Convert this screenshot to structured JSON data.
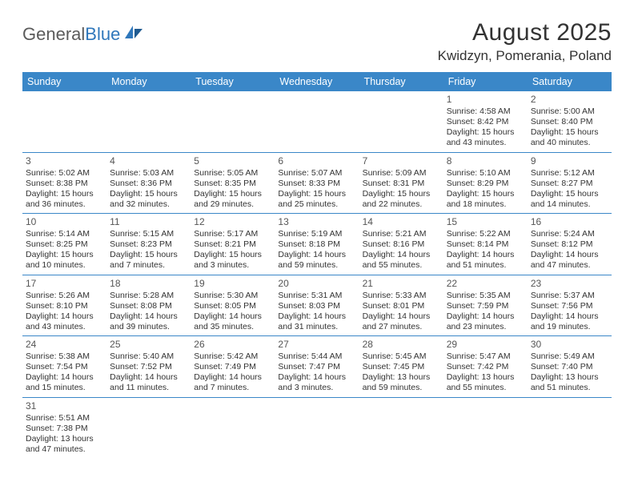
{
  "logo": {
    "text1": "General",
    "text2": "Blue"
  },
  "title": "August 2025",
  "location": "Kwidzyn, Pomerania, Poland",
  "colors": {
    "header_bg": "#3a87c8",
    "header_text": "#ffffff",
    "border": "#3a87c8",
    "text": "#333333",
    "logo_gray": "#5b5b5b",
    "logo_blue": "#2f77bb"
  },
  "days": [
    "Sunday",
    "Monday",
    "Tuesday",
    "Wednesday",
    "Thursday",
    "Friday",
    "Saturday"
  ],
  "weeks": [
    [
      null,
      null,
      null,
      null,
      null,
      {
        "n": "1",
        "sr": "Sunrise: 4:58 AM",
        "ss": "Sunset: 8:42 PM",
        "dl": "Daylight: 15 hours and 43 minutes."
      },
      {
        "n": "2",
        "sr": "Sunrise: 5:00 AM",
        "ss": "Sunset: 8:40 PM",
        "dl": "Daylight: 15 hours and 40 minutes."
      }
    ],
    [
      {
        "n": "3",
        "sr": "Sunrise: 5:02 AM",
        "ss": "Sunset: 8:38 PM",
        "dl": "Daylight: 15 hours and 36 minutes."
      },
      {
        "n": "4",
        "sr": "Sunrise: 5:03 AM",
        "ss": "Sunset: 8:36 PM",
        "dl": "Daylight: 15 hours and 32 minutes."
      },
      {
        "n": "5",
        "sr": "Sunrise: 5:05 AM",
        "ss": "Sunset: 8:35 PM",
        "dl": "Daylight: 15 hours and 29 minutes."
      },
      {
        "n": "6",
        "sr": "Sunrise: 5:07 AM",
        "ss": "Sunset: 8:33 PM",
        "dl": "Daylight: 15 hours and 25 minutes."
      },
      {
        "n": "7",
        "sr": "Sunrise: 5:09 AM",
        "ss": "Sunset: 8:31 PM",
        "dl": "Daylight: 15 hours and 22 minutes."
      },
      {
        "n": "8",
        "sr": "Sunrise: 5:10 AM",
        "ss": "Sunset: 8:29 PM",
        "dl": "Daylight: 15 hours and 18 minutes."
      },
      {
        "n": "9",
        "sr": "Sunrise: 5:12 AM",
        "ss": "Sunset: 8:27 PM",
        "dl": "Daylight: 15 hours and 14 minutes."
      }
    ],
    [
      {
        "n": "10",
        "sr": "Sunrise: 5:14 AM",
        "ss": "Sunset: 8:25 PM",
        "dl": "Daylight: 15 hours and 10 minutes."
      },
      {
        "n": "11",
        "sr": "Sunrise: 5:15 AM",
        "ss": "Sunset: 8:23 PM",
        "dl": "Daylight: 15 hours and 7 minutes."
      },
      {
        "n": "12",
        "sr": "Sunrise: 5:17 AM",
        "ss": "Sunset: 8:21 PM",
        "dl": "Daylight: 15 hours and 3 minutes."
      },
      {
        "n": "13",
        "sr": "Sunrise: 5:19 AM",
        "ss": "Sunset: 8:18 PM",
        "dl": "Daylight: 14 hours and 59 minutes."
      },
      {
        "n": "14",
        "sr": "Sunrise: 5:21 AM",
        "ss": "Sunset: 8:16 PM",
        "dl": "Daylight: 14 hours and 55 minutes."
      },
      {
        "n": "15",
        "sr": "Sunrise: 5:22 AM",
        "ss": "Sunset: 8:14 PM",
        "dl": "Daylight: 14 hours and 51 minutes."
      },
      {
        "n": "16",
        "sr": "Sunrise: 5:24 AM",
        "ss": "Sunset: 8:12 PM",
        "dl": "Daylight: 14 hours and 47 minutes."
      }
    ],
    [
      {
        "n": "17",
        "sr": "Sunrise: 5:26 AM",
        "ss": "Sunset: 8:10 PM",
        "dl": "Daylight: 14 hours and 43 minutes."
      },
      {
        "n": "18",
        "sr": "Sunrise: 5:28 AM",
        "ss": "Sunset: 8:08 PM",
        "dl": "Daylight: 14 hours and 39 minutes."
      },
      {
        "n": "19",
        "sr": "Sunrise: 5:30 AM",
        "ss": "Sunset: 8:05 PM",
        "dl": "Daylight: 14 hours and 35 minutes."
      },
      {
        "n": "20",
        "sr": "Sunrise: 5:31 AM",
        "ss": "Sunset: 8:03 PM",
        "dl": "Daylight: 14 hours and 31 minutes."
      },
      {
        "n": "21",
        "sr": "Sunrise: 5:33 AM",
        "ss": "Sunset: 8:01 PM",
        "dl": "Daylight: 14 hours and 27 minutes."
      },
      {
        "n": "22",
        "sr": "Sunrise: 5:35 AM",
        "ss": "Sunset: 7:59 PM",
        "dl": "Daylight: 14 hours and 23 minutes."
      },
      {
        "n": "23",
        "sr": "Sunrise: 5:37 AM",
        "ss": "Sunset: 7:56 PM",
        "dl": "Daylight: 14 hours and 19 minutes."
      }
    ],
    [
      {
        "n": "24",
        "sr": "Sunrise: 5:38 AM",
        "ss": "Sunset: 7:54 PM",
        "dl": "Daylight: 14 hours and 15 minutes."
      },
      {
        "n": "25",
        "sr": "Sunrise: 5:40 AM",
        "ss": "Sunset: 7:52 PM",
        "dl": "Daylight: 14 hours and 11 minutes."
      },
      {
        "n": "26",
        "sr": "Sunrise: 5:42 AM",
        "ss": "Sunset: 7:49 PM",
        "dl": "Daylight: 14 hours and 7 minutes."
      },
      {
        "n": "27",
        "sr": "Sunrise: 5:44 AM",
        "ss": "Sunset: 7:47 PM",
        "dl": "Daylight: 14 hours and 3 minutes."
      },
      {
        "n": "28",
        "sr": "Sunrise: 5:45 AM",
        "ss": "Sunset: 7:45 PM",
        "dl": "Daylight: 13 hours and 59 minutes."
      },
      {
        "n": "29",
        "sr": "Sunrise: 5:47 AM",
        "ss": "Sunset: 7:42 PM",
        "dl": "Daylight: 13 hours and 55 minutes."
      },
      {
        "n": "30",
        "sr": "Sunrise: 5:49 AM",
        "ss": "Sunset: 7:40 PM",
        "dl": "Daylight: 13 hours and 51 minutes."
      }
    ],
    [
      {
        "n": "31",
        "sr": "Sunrise: 5:51 AM",
        "ss": "Sunset: 7:38 PM",
        "dl": "Daylight: 13 hours and 47 minutes."
      },
      null,
      null,
      null,
      null,
      null,
      null
    ]
  ]
}
